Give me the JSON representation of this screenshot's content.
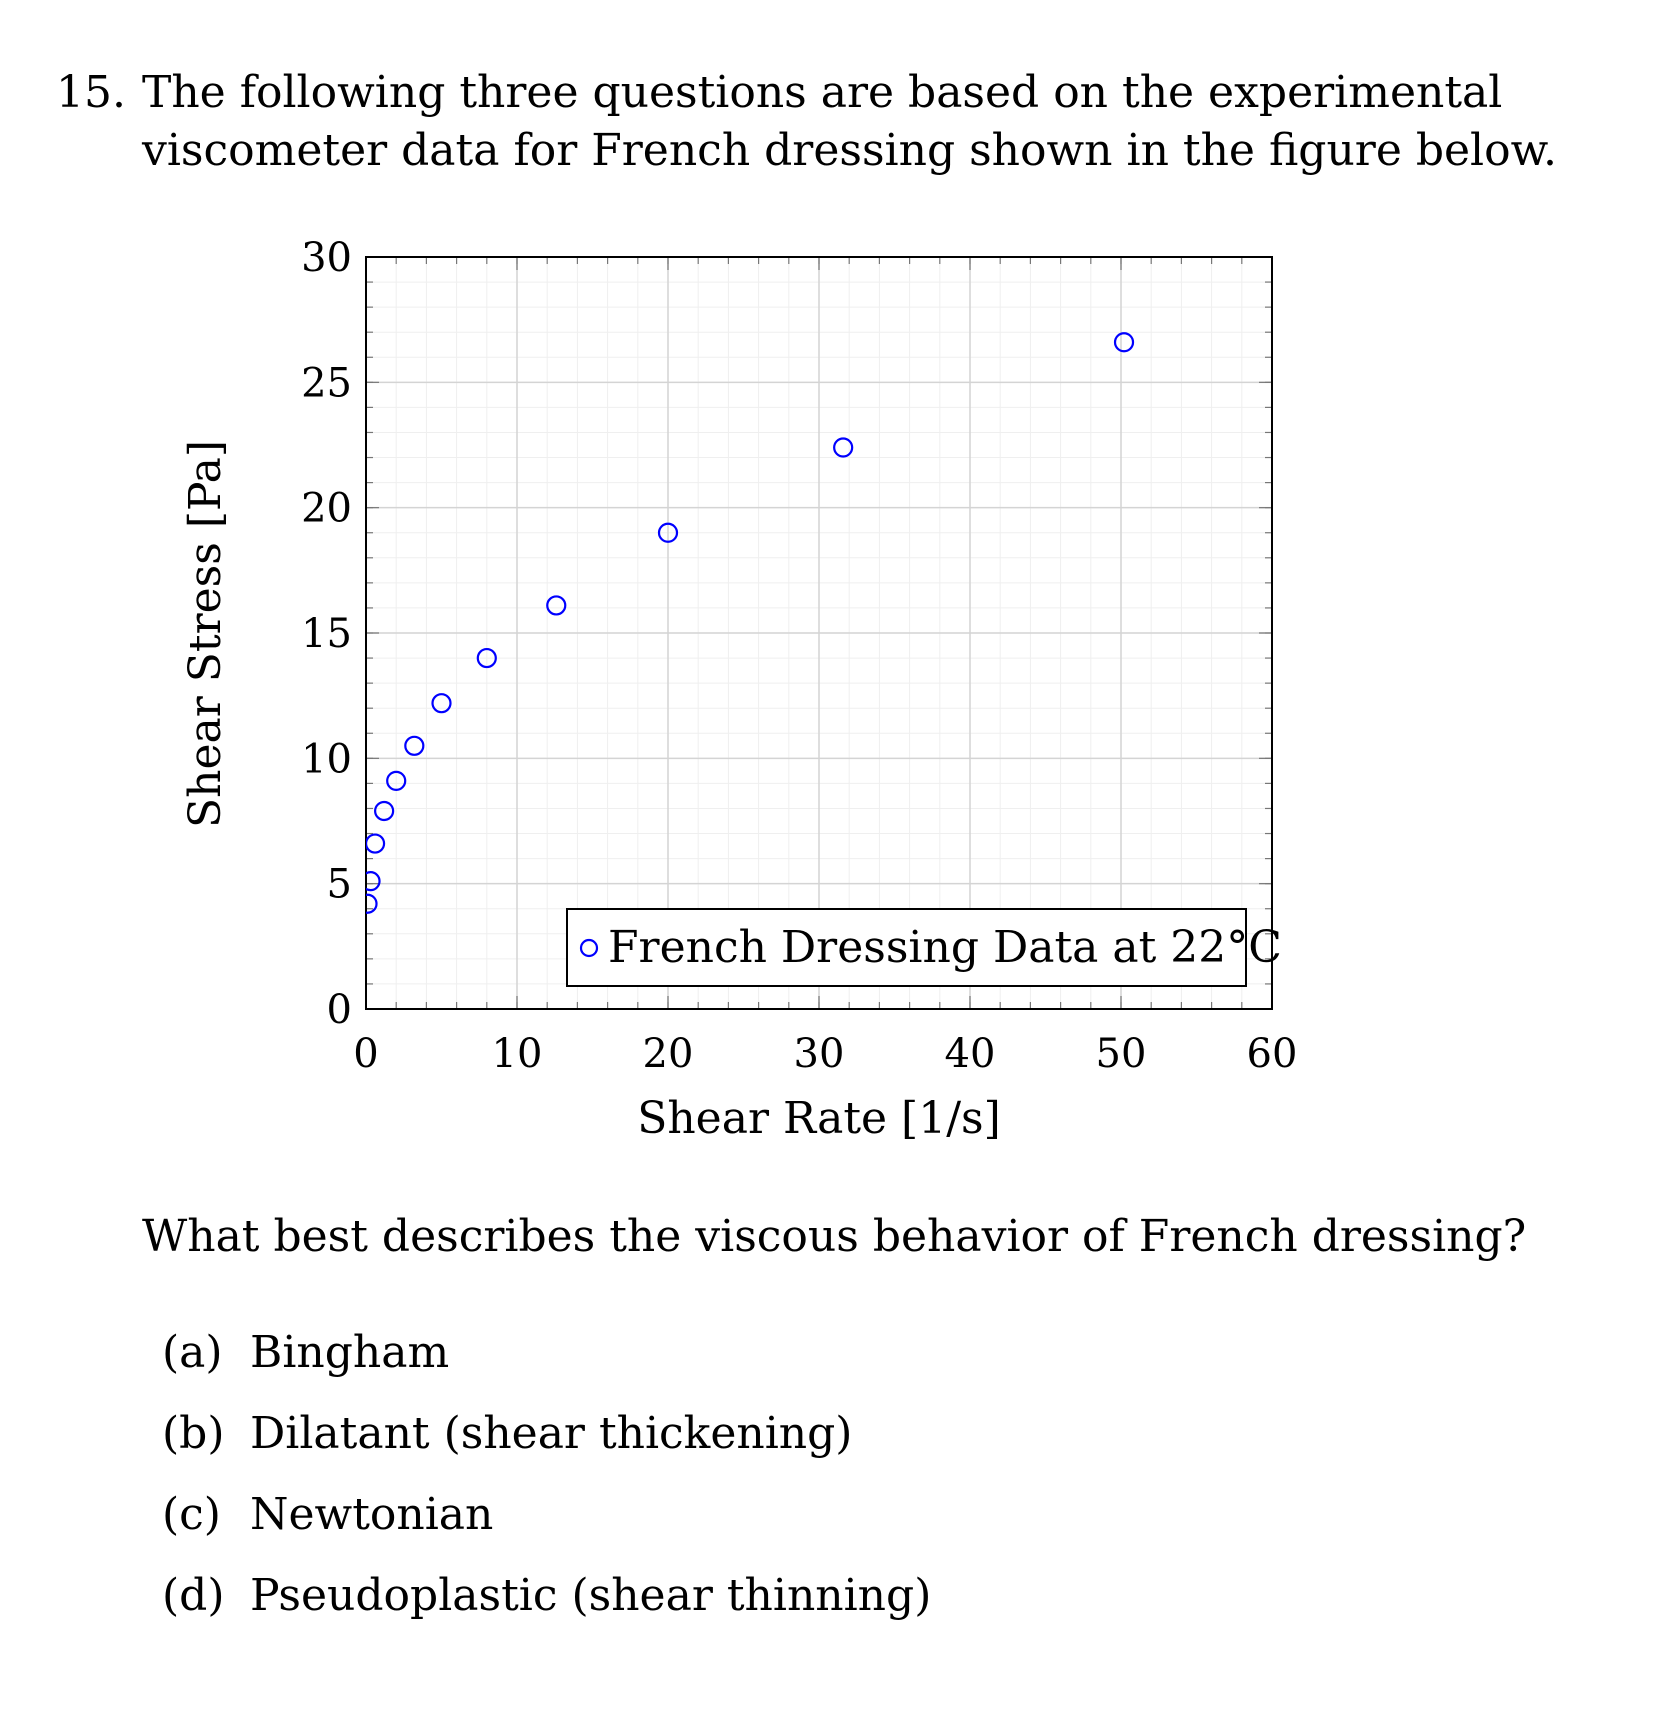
{
  "question": {
    "number": "15.",
    "intro": "The following three questions are based on the experimental viscometer data for French dressing shown in the figure below.",
    "prompt": "What best describes the viscous behavior of French dressing?",
    "options": [
      {
        "label": "(a)",
        "text": "Bingham"
      },
      {
        "label": "(b)",
        "text": "Dilatant (shear thickening)"
      },
      {
        "label": "(c)",
        "text": "Newtonian"
      },
      {
        "label": "(d)",
        "text": "Pseudoplastic (shear thinning)"
      }
    ]
  },
  "chart_data": {
    "type": "scatter",
    "xlabel": "Shear Rate [1/s]",
    "ylabel": "Shear Stress [Pa]",
    "xlim": [
      0,
      60
    ],
    "ylim": [
      0,
      30
    ],
    "xticks": [
      0,
      10,
      20,
      30,
      40,
      50,
      60
    ],
    "yticks": [
      0,
      5,
      10,
      15,
      20,
      25,
      30
    ],
    "grid": true,
    "legend_position": "bottom-right",
    "marker_color": "#0000ff",
    "series": [
      {
        "name": "French Dressing Data at 22°C",
        "x": [
          0.1,
          0.3,
          0.6,
          1.2,
          2.0,
          3.2,
          5.0,
          8.0,
          12.6,
          20.0,
          31.6,
          50.2
        ],
        "y": [
          4.2,
          5.1,
          6.6,
          7.9,
          9.1,
          10.5,
          12.2,
          14.0,
          16.1,
          19.0,
          22.4,
          26.6
        ]
      }
    ]
  }
}
